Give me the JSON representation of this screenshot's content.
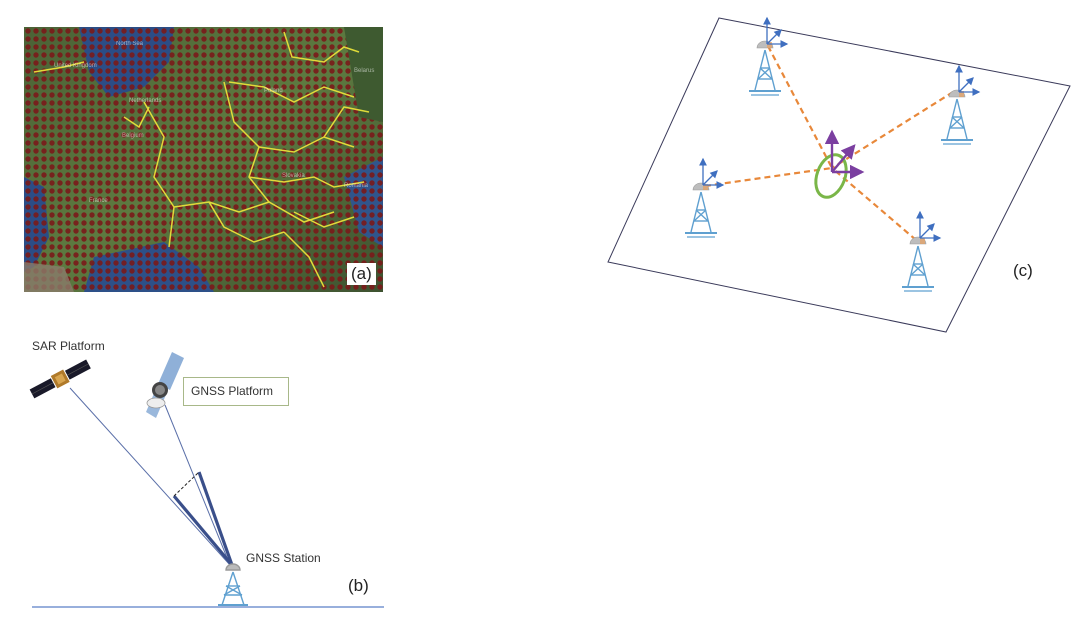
{
  "panel_a": {
    "label": "(a)",
    "colors": {
      "map_dark": "#3a4a2c",
      "map_mid": "#55703c",
      "water": "#2b4d86",
      "dots": "#7a1a1a",
      "borders": "#e8e23a"
    }
  },
  "panel_b": {
    "label": "(b)",
    "sar_platform": "SAR Platform",
    "gnss_platform": "GNSS Platform",
    "gnss_station": "GNSS Station",
    "colors": {
      "ray": "#5a6fa8",
      "ground": "#5b7fc7",
      "box_border": "#a8b889"
    }
  },
  "panel_c": {
    "label": "(c)",
    "colors": {
      "tower": "#5fa0d0",
      "axes": "#3f6fc0",
      "links": "#e8883a",
      "center_axes": "#7b3fa0",
      "ellipse": "#7ab648"
    }
  }
}
